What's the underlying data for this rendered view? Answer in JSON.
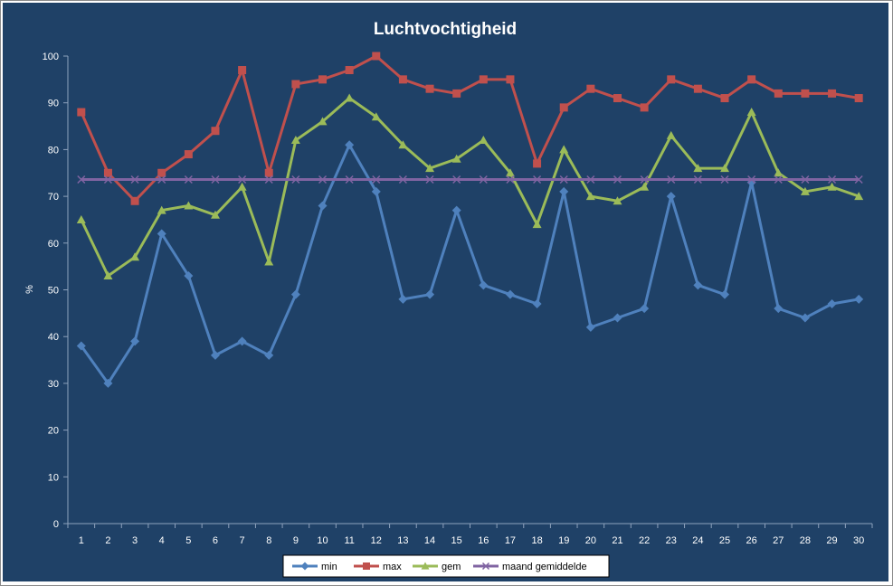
{
  "chart_data": {
    "type": "line",
    "title": "Luchtvochtigheid",
    "xlabel": "",
    "ylabel": "%",
    "x": [
      1,
      2,
      3,
      4,
      5,
      6,
      7,
      8,
      9,
      10,
      11,
      12,
      13,
      14,
      15,
      16,
      17,
      18,
      19,
      20,
      21,
      22,
      23,
      24,
      25,
      26,
      27,
      28,
      29,
      30
    ],
    "ylim": [
      0,
      100
    ],
    "yticks": [
      0,
      10,
      20,
      30,
      40,
      50,
      60,
      70,
      80,
      90,
      100
    ],
    "grid": false,
    "legend": "bottom",
    "background": "#1f4167",
    "series": [
      {
        "name": "min",
        "color": "#4f81bd",
        "marker": "diamond",
        "values": [
          38,
          30,
          39,
          62,
          53,
          36,
          39,
          36,
          49,
          68,
          81,
          71,
          48,
          49,
          67,
          51,
          49,
          47,
          71,
          42,
          44,
          46,
          70,
          51,
          49,
          73,
          46,
          44,
          47,
          48
        ]
      },
      {
        "name": "max",
        "color": "#c0504d",
        "marker": "square",
        "values": [
          88,
          75,
          69,
          75,
          79,
          84,
          97,
          75,
          94,
          95,
          97,
          100,
          95,
          93,
          92,
          95,
          95,
          77,
          89,
          93,
          91,
          89,
          95,
          93,
          91,
          95,
          92,
          92,
          92,
          91
        ]
      },
      {
        "name": "gem",
        "color": "#9bbb59",
        "marker": "triangle",
        "values": [
          65,
          53,
          57,
          67,
          68,
          66,
          72,
          56,
          82,
          86,
          91,
          87,
          81,
          76,
          78,
          82,
          75,
          64,
          80,
          70,
          69,
          72,
          83,
          76,
          76,
          88,
          75,
          71,
          72,
          70
        ]
      },
      {
        "name": "maand gemiddelde",
        "color": "#8064a2",
        "marker": "x",
        "values": [
          73.6,
          73.6,
          73.6,
          73.6,
          73.6,
          73.6,
          73.6,
          73.6,
          73.6,
          73.6,
          73.6,
          73.6,
          73.6,
          73.6,
          73.6,
          73.6,
          73.6,
          73.6,
          73.6,
          73.6,
          73.6,
          73.6,
          73.6,
          73.6,
          73.6,
          73.6,
          73.6,
          73.6,
          73.6,
          73.6
        ]
      }
    ]
  }
}
